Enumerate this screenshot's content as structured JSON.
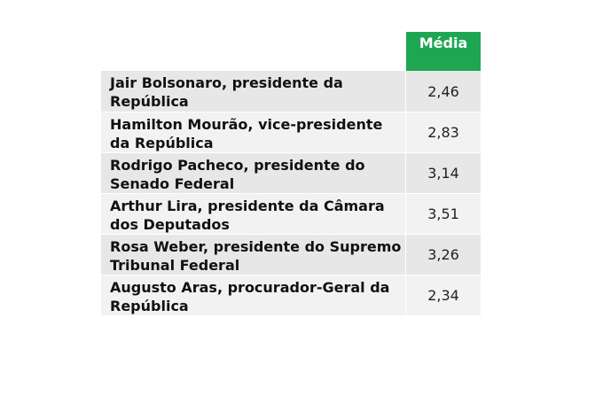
{
  "table": {
    "header": "Média",
    "rows": [
      {
        "name": "Jair Bolsonaro, presidente da República",
        "value": "2,46"
      },
      {
        "name": "Hamilton Mourão, vice-presidente da República",
        "value": "2,83"
      },
      {
        "name": "Rodrigo Pacheco, presidente do Senado Federal",
        "value": "3,14"
      },
      {
        "name": "Arthur Lira, presidente da Câmara dos Deputados",
        "value": "3,51"
      },
      {
        "name": "Rosa Weber, presidente do Supremo Tribunal Federal",
        "value": "3,26"
      },
      {
        "name": "Augusto Aras, procurador-Geral da República",
        "value": "2,34"
      }
    ]
  }
}
